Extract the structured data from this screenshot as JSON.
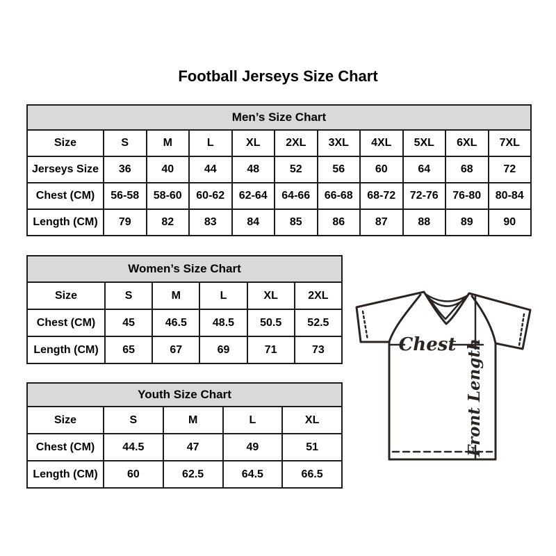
{
  "page": {
    "title": "Football Jerseys Size Chart"
  },
  "tables": {
    "men": {
      "header": "Men’s Size Chart",
      "rows": [
        [
          "Size",
          "S",
          "M",
          "L",
          "XL",
          "2XL",
          "3XL",
          "4XL",
          "5XL",
          "6XL",
          "7XL"
        ],
        [
          "Jerseys Size",
          "36",
          "40",
          "44",
          "48",
          "52",
          "56",
          "60",
          "64",
          "68",
          "72"
        ],
        [
          "Chest (CM)",
          "56-58",
          "58-60",
          "60-62",
          "62-64",
          "64-66",
          "66-68",
          "68-72",
          "72-76",
          "76-80",
          "80-84"
        ],
        [
          "Length (CM)",
          "79",
          "82",
          "83",
          "84",
          "85",
          "86",
          "87",
          "88",
          "89",
          "90"
        ]
      ]
    },
    "women": {
      "header": "Women’s Size Chart",
      "rows": [
        [
          "Size",
          "S",
          "M",
          "L",
          "XL",
          "2XL"
        ],
        [
          "Chest (CM)",
          "45",
          "46.5",
          "48.5",
          "50.5",
          "52.5"
        ],
        [
          "Length (CM)",
          "65",
          "67",
          "69",
          "71",
          "73"
        ]
      ]
    },
    "youth": {
      "header": "Youth Size Chart",
      "rows": [
        [
          "Size",
          "S",
          "M",
          "L",
          "XL"
        ],
        [
          "Chest (CM)",
          "44.5",
          "47",
          "49",
          "51"
        ],
        [
          "Length (CM)",
          "60",
          "62.5",
          "64.5",
          "66.5"
        ]
      ]
    }
  },
  "diagram": {
    "chest_label": "Chest",
    "front_length_label": "Front Length"
  },
  "colors": {
    "header_bg": "#d9d9d9",
    "table_border": "#1c1c1c",
    "text": "#000000",
    "diagram_stroke": "#2b2522",
    "background": "#ffffff"
  }
}
